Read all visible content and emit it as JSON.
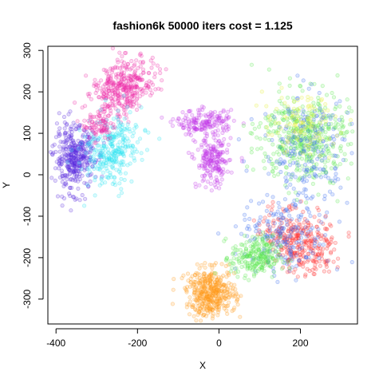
{
  "chart_data": {
    "type": "scatter",
    "title": "fashion6k 50000 iters cost = 1.125",
    "xlabel": "X",
    "ylabel": "Y",
    "xlim": [
      -420,
      340
    ],
    "ylim": [
      -360,
      310
    ],
    "x_ticks": [
      -400,
      -200,
      0,
      200
    ],
    "y_ticks": [
      -300,
      -200,
      -100,
      0,
      100,
      200,
      300
    ],
    "grid": false,
    "legend": "none",
    "point_marker": "open-circle",
    "point_alpha": 0.35,
    "clusters": [
      {
        "color": "#ee2aa8",
        "center": [
          -235,
          210
        ],
        "spread": [
          42,
          30
        ],
        "count": 380,
        "tilt": 0.7
      },
      {
        "color": "#5b2be0",
        "center": [
          -355,
          40
        ],
        "spread": [
          25,
          38
        ],
        "count": 380,
        "tilt": 0.0
      },
      {
        "color": "#2fe6f2",
        "center": [
          -260,
          60
        ],
        "spread": [
          35,
          45
        ],
        "count": 300,
        "tilt": -0.5
      },
      {
        "color": "#c23ae8",
        "center": [
          -35,
          125
        ],
        "spread": [
          35,
          15
        ],
        "count": 170,
        "tilt": 0.0
      },
      {
        "color": "#c23ae8",
        "center": [
          -15,
          30
        ],
        "spread": [
          20,
          30
        ],
        "count": 200,
        "tilt": 0.0
      },
      {
        "color": "#ff9a1e",
        "center": [
          -20,
          -285
        ],
        "spread": [
          30,
          28
        ],
        "count": 420,
        "tilt": 0.0
      },
      {
        "color": "#5de851",
        "center": [
          210,
          90
        ],
        "spread": [
          55,
          55
        ],
        "count": 450,
        "tilt": 0.0
      },
      {
        "color": "#3f6ff0",
        "center": [
          215,
          60
        ],
        "spread": [
          55,
          70
        ],
        "count": 220,
        "tilt": 0.0
      },
      {
        "color": "#e6f03a",
        "center": [
          200,
          120
        ],
        "spread": [
          45,
          35
        ],
        "count": 110,
        "tilt": 0.0
      },
      {
        "color": "#ff2a2a",
        "center": [
          200,
          -160
        ],
        "spread": [
          45,
          35
        ],
        "count": 320,
        "tilt": -0.6
      },
      {
        "color": "#3f6ff0",
        "center": [
          160,
          -150
        ],
        "spread": [
          55,
          45
        ],
        "count": 200,
        "tilt": 0.0
      },
      {
        "color": "#5de851",
        "center": [
          90,
          -200
        ],
        "spread": [
          30,
          25
        ],
        "count": 240,
        "tilt": 0.0
      },
      {
        "color": "#ee2aa8",
        "center": [
          -295,
          120
        ],
        "spread": [
          20,
          18
        ],
        "count": 80,
        "tilt": 0.0
      }
    ]
  }
}
